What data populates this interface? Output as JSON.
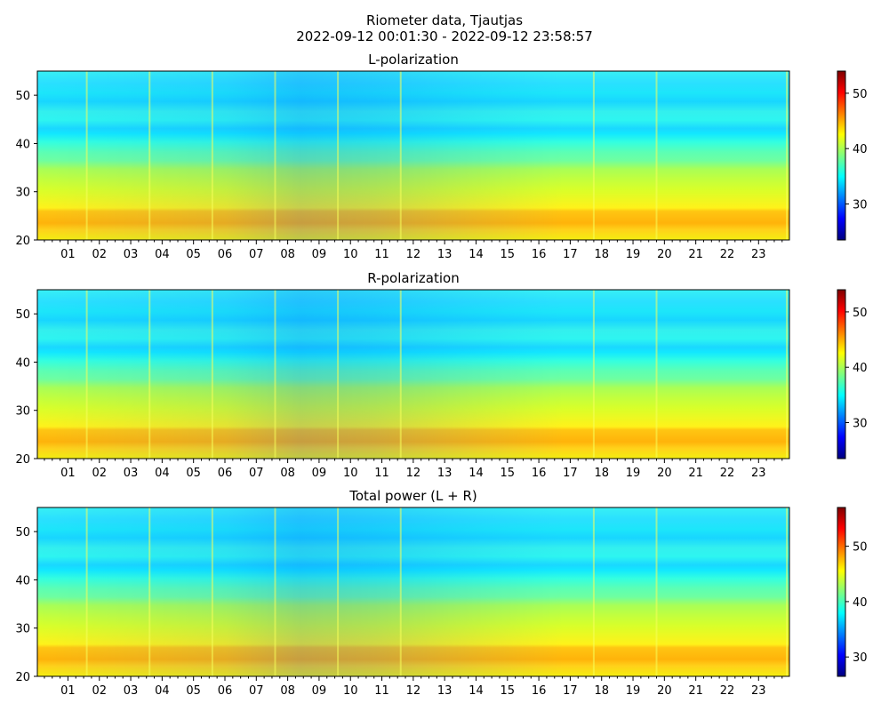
{
  "figure": {
    "title": "Riometer data, Tjautjas",
    "subtitle": "2022-09-12 00:01:30 - 2022-09-12 23:58:57"
  },
  "colormap": {
    "name": "jet",
    "stops": [
      "#00007f",
      "#0000ff",
      "#007fff",
      "#00ffff",
      "#7fff7f",
      "#ffff00",
      "#ff7f00",
      "#ff0000",
      "#7f0000"
    ]
  },
  "chart_data": [
    {
      "type": "heatmap",
      "title": "L-polarization",
      "xlabel": "",
      "ylabel": "",
      "x_tick_labels": [
        "01",
        "02",
        "03",
        "04",
        "05",
        "06",
        "07",
        "08",
        "09",
        "10",
        "11",
        "12",
        "13",
        "14",
        "15",
        "16",
        "17",
        "18",
        "19",
        "20",
        "21",
        "22",
        "23"
      ],
      "xlim_hours": [
        0.025,
        23.983
      ],
      "y_ticks": [
        20,
        30,
        40,
        50
      ],
      "ylim": [
        20,
        55
      ],
      "colorbar": {
        "range": [
          23.5,
          54
        ],
        "ticks": [
          30,
          40,
          50
        ]
      }
    },
    {
      "type": "heatmap",
      "title": "R-polarization",
      "xlabel": "",
      "ylabel": "",
      "x_tick_labels": [
        "01",
        "02",
        "03",
        "04",
        "05",
        "06",
        "07",
        "08",
        "09",
        "10",
        "11",
        "12",
        "13",
        "14",
        "15",
        "16",
        "17",
        "18",
        "19",
        "20",
        "21",
        "22",
        "23"
      ],
      "xlim_hours": [
        0.025,
        23.983
      ],
      "y_ticks": [
        20,
        30,
        40,
        50
      ],
      "ylim": [
        20,
        55
      ],
      "colorbar": {
        "range": [
          23.5,
          54
        ],
        "ticks": [
          30,
          40,
          50
        ]
      }
    },
    {
      "type": "heatmap",
      "title": "Total power (L + R)",
      "xlabel": "",
      "ylabel": "",
      "x_tick_labels": [
        "01",
        "02",
        "03",
        "04",
        "05",
        "06",
        "07",
        "08",
        "09",
        "10",
        "11",
        "12",
        "13",
        "14",
        "15",
        "16",
        "17",
        "18",
        "19",
        "20",
        "21",
        "22",
        "23"
      ],
      "xlim_hours": [
        0.025,
        23.983
      ],
      "y_ticks": [
        20,
        30,
        40,
        50
      ],
      "ylim": [
        20,
        55
      ],
      "colorbar": {
        "range": [
          26.5,
          57
        ],
        "ticks": [
          30,
          40,
          50
        ]
      }
    }
  ]
}
